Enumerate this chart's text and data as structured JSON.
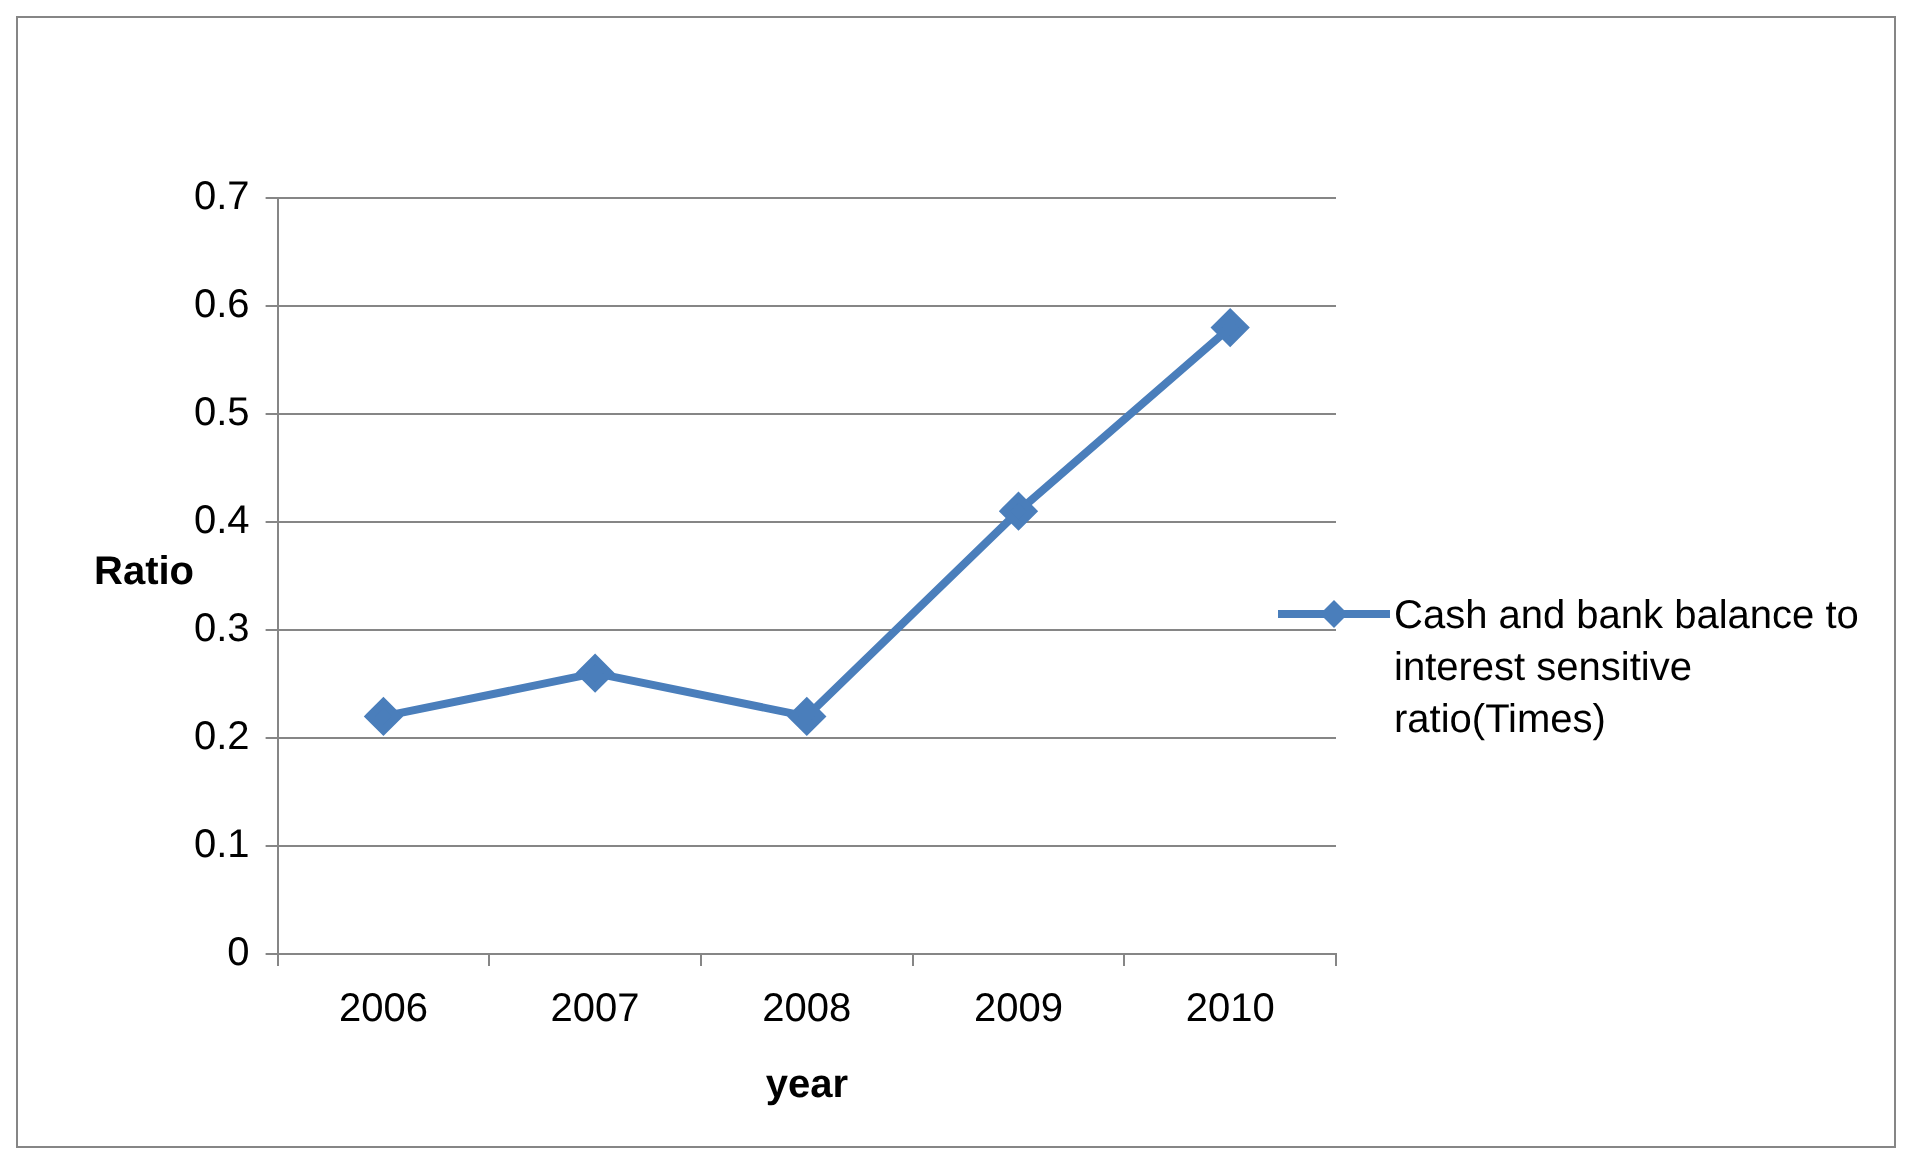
{
  "chart_data": {
    "type": "line",
    "xlabel": "year",
    "ylabel": "Ratio",
    "categories": [
      "2006",
      "2007",
      "2008",
      "2009",
      "2010"
    ],
    "series": [
      {
        "name": "Cash and bank balance to interest sensitive ratio(Times)",
        "color": "#4a7ebb",
        "values": [
          0.22,
          0.26,
          0.22,
          0.41,
          0.58
        ]
      }
    ],
    "ylim": [
      0,
      0.7
    ],
    "yticks": [
      0,
      0.1,
      0.2,
      0.3,
      0.4,
      0.5,
      0.6,
      0.7
    ],
    "grid": "y",
    "legend": "right",
    "marker": "diamond",
    "line_style": "solid"
  }
}
